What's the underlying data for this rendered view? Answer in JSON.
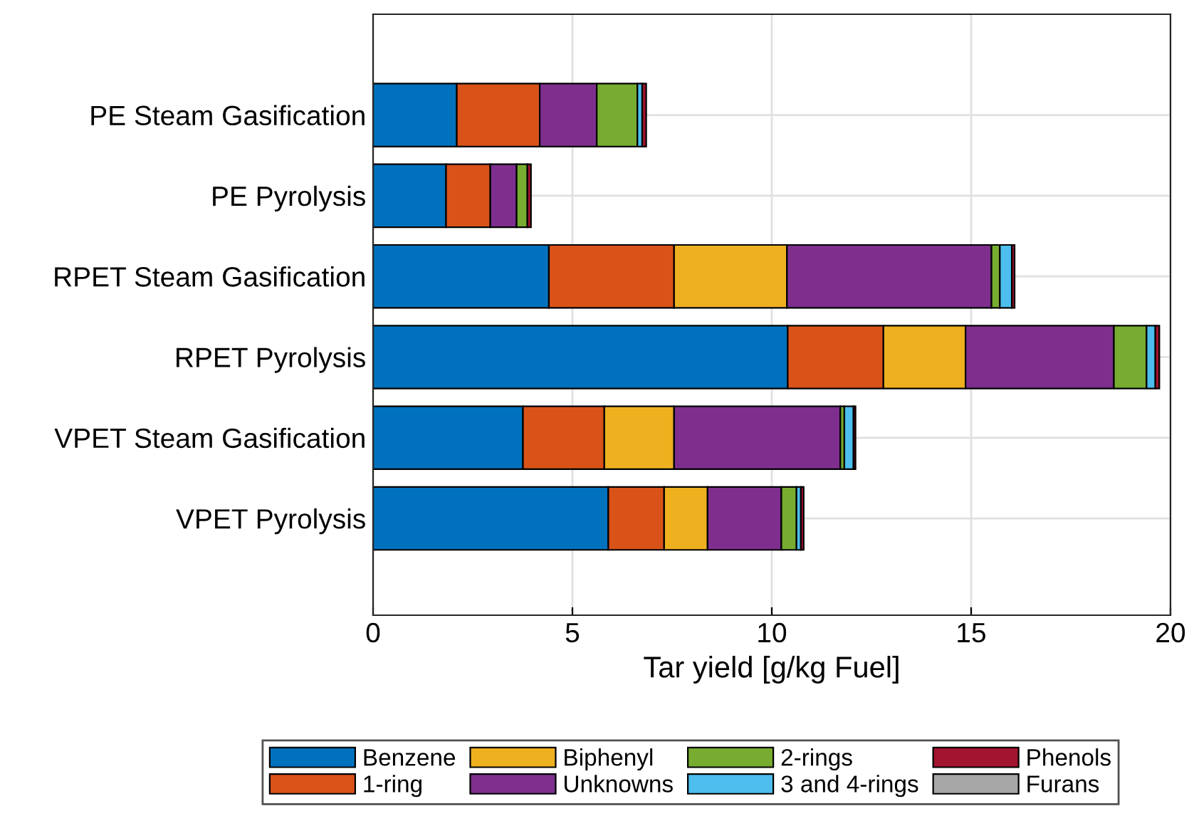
{
  "chart_data": {
    "type": "bar",
    "orientation": "horizontal",
    "stacked": true,
    "xlabel": "Tar yield [g/kg Fuel]",
    "categories": [
      "PE Steam Gasification",
      "PE Pyrolysis",
      "RPET Steam Gasification",
      "RPET Pyrolysis",
      "VPET Steam Gasification",
      "VPET Pyrolysis"
    ],
    "series": [
      {
        "name": "Benzene",
        "color": "#0072bd",
        "values": [
          2.1,
          1.83,
          4.41,
          10.4,
          3.76,
          5.9
        ]
      },
      {
        "name": "1-ring",
        "color": "#d95319",
        "values": [
          2.08,
          1.11,
          3.14,
          2.4,
          2.04,
          1.4
        ]
      },
      {
        "name": "Biphenyl",
        "color": "#edb120",
        "values": [
          0,
          0,
          2.83,
          2.06,
          1.75,
          1.09
        ]
      },
      {
        "name": "Unknowns",
        "color": "#7e2f8e",
        "values": [
          1.43,
          0.66,
          5.13,
          3.72,
          4.17,
          1.85
        ]
      },
      {
        "name": "2-rings",
        "color": "#77ac30",
        "values": [
          1.02,
          0.27,
          0.21,
          0.82,
          0.1,
          0.38
        ]
      },
      {
        "name": "3 and 4-rings",
        "color": "#4dbeee",
        "values": [
          0.12,
          0,
          0.3,
          0.22,
          0.23,
          0.11
        ]
      },
      {
        "name": "Phenols",
        "color": "#a2142f",
        "values": [
          0.1,
          0.09,
          0.07,
          0.1,
          0.05,
          0.07
        ]
      },
      {
        "name": "Furans",
        "color": "#a6a6a6",
        "values": [
          0,
          0,
          0,
          0,
          0,
          0
        ]
      }
    ],
    "xlim": [
      0,
      20
    ],
    "xticks": [
      0,
      5,
      10,
      15,
      20
    ],
    "grid": true,
    "legend": "bottom"
  }
}
